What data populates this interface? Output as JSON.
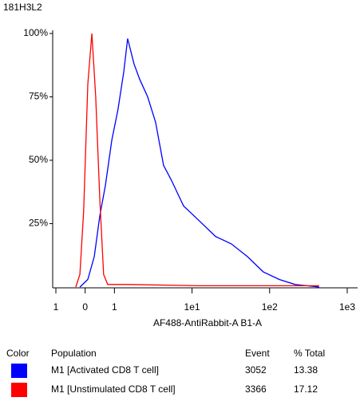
{
  "chart_data": {
    "type": "line",
    "title": "181H3L2",
    "x_label": "AF488-AntiRabbit-A B1-A",
    "xscale": "biexponential",
    "xlim": [
      -1,
      1000
    ],
    "xticks": [
      {
        "value": -1,
        "label": "1"
      },
      0,
      1,
      {
        "value": 10,
        "label": "1e1"
      },
      {
        "value": 100,
        "label": "1e2"
      },
      {
        "value": 1000,
        "label": "1e3"
      }
    ],
    "ylim": [
      0,
      100
    ],
    "yticks": [
      {
        "value": 25,
        "label": "25%"
      },
      {
        "value": 50,
        "label": "50%"
      },
      {
        "value": 75,
        "label": "75%"
      },
      {
        "value": 100,
        "label": "100%"
      }
    ],
    "legend_headers": [
      "Color",
      "Population",
      "Event",
      "% Total"
    ],
    "series": [
      {
        "name": "M1 [Activated CD8 T cell]",
        "color": "#0000ff",
        "event": 3052,
        "percent_total": 13.38,
        "x": [
          -0.18,
          0.09,
          0.31,
          0.5,
          0.69,
          0.91,
          1.11,
          1.32,
          1.48,
          1.79,
          2.11,
          2.68,
          3.39,
          4.3,
          5.44,
          7.76,
          12.5,
          20,
          32.1,
          51.7,
          82.6,
          133,
          213,
          434
        ],
        "values": [
          0,
          3,
          12,
          28,
          40,
          58,
          70,
          85,
          98,
          88,
          82,
          75,
          65,
          48,
          42,
          32,
          26,
          20,
          17,
          12,
          6,
          3,
          1,
          0
        ]
      },
      {
        "name": "M1 [Unstimulated CD8 T cell]",
        "color": "#ff0000",
        "event": 3366,
        "percent_total": 17.12,
        "x": [
          -0.32,
          -0.18,
          -0.05,
          0.09,
          0.23,
          0.36,
          0.5,
          0.63,
          0.77,
          1.48,
          12.5,
          434
        ],
        "values": [
          0,
          5,
          30,
          80,
          100,
          75,
          35,
          5,
          1,
          1,
          0.5,
          0.5
        ]
      }
    ]
  }
}
